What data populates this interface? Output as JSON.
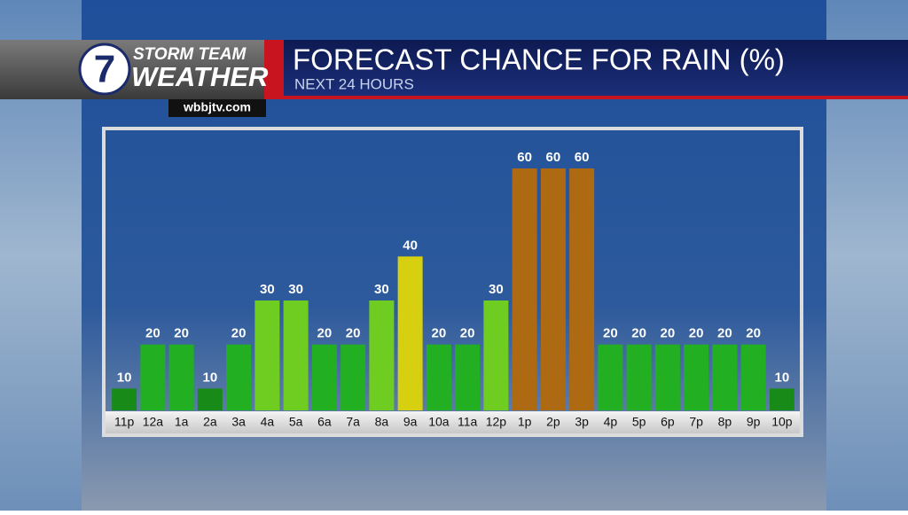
{
  "branding": {
    "logo_number": "7",
    "line1": "STORM TEAM",
    "line2": "WEATHER",
    "website": "wbbjtv.com"
  },
  "chart_data": {
    "type": "bar",
    "title": "FORECAST CHANCE FOR RAIN (%)",
    "subtitle": "NEXT 24 HOURS",
    "categories": [
      "11p",
      "12a",
      "1a",
      "2a",
      "3a",
      "4a",
      "5a",
      "6a",
      "7a",
      "8a",
      "9a",
      "10a",
      "11a",
      "12p",
      "1p",
      "2p",
      "3p",
      "4p",
      "5p",
      "6p",
      "7p",
      "8p",
      "9p",
      "10p"
    ],
    "values": [
      10,
      20,
      20,
      10,
      20,
      30,
      30,
      20,
      20,
      30,
      40,
      20,
      20,
      30,
      60,
      60,
      60,
      20,
      20,
      20,
      20,
      20,
      20,
      10
    ],
    "colors": [
      "#188a18",
      "#22b022",
      "#22b022",
      "#188a18",
      "#22b022",
      "#6fcd22",
      "#6fcd22",
      "#22b022",
      "#22b022",
      "#6fcd22",
      "#d6d010",
      "#22b022",
      "#22b022",
      "#6fcd22",
      "#ad6a12",
      "#ad6a12",
      "#ad6a12",
      "#22b022",
      "#22b022",
      "#22b022",
      "#22b022",
      "#22b022",
      "#22b022",
      "#188a18"
    ]
  }
}
